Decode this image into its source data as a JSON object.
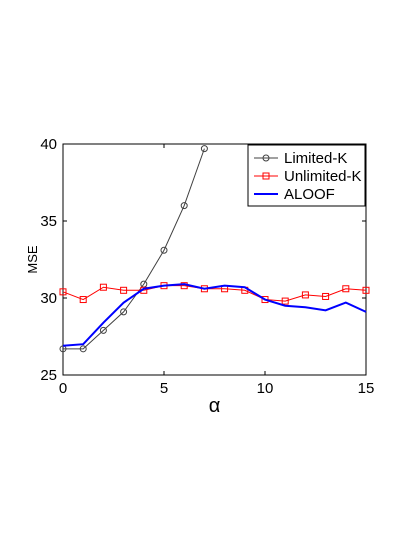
{
  "chart_data": {
    "type": "line",
    "title": "",
    "xlabel": "α",
    "ylabel": "MSE",
    "xlim": [
      0,
      15
    ],
    "ylim": [
      25,
      40
    ],
    "xticks": [
      0,
      5,
      10,
      15
    ],
    "yticks": [
      25,
      30,
      35,
      40
    ],
    "grid": false,
    "legend_position": "top-right",
    "series": [
      {
        "name": "Limited-K",
        "color": "#404040",
        "marker": "circle",
        "x": [
          0,
          1,
          2,
          3,
          4,
          5,
          6,
          7
        ],
        "y": [
          26.7,
          26.7,
          27.9,
          29.1,
          30.9,
          33.1,
          36.0,
          39.7
        ]
      },
      {
        "name": "Unlimited-K",
        "color": "#ff0000",
        "marker": "square",
        "x": [
          0,
          1,
          2,
          3,
          4,
          5,
          6,
          7,
          8,
          9,
          10,
          11,
          12,
          13,
          14,
          15
        ],
        "y": [
          30.4,
          29.9,
          30.7,
          30.5,
          30.5,
          30.8,
          30.8,
          30.6,
          30.6,
          30.5,
          29.9,
          29.8,
          30.2,
          30.1,
          30.6,
          30.5
        ]
      },
      {
        "name": "ALOOF",
        "color": "#0000ff",
        "marker": "none",
        "x": [
          0,
          1,
          2,
          3,
          4,
          5,
          6,
          7,
          8,
          9,
          10,
          11,
          12,
          13,
          14,
          15
        ],
        "y": [
          26.9,
          27.0,
          28.4,
          29.7,
          30.6,
          30.8,
          30.9,
          30.6,
          30.8,
          30.7,
          29.9,
          29.5,
          29.4,
          29.2,
          29.7,
          29.1
        ]
      }
    ]
  }
}
